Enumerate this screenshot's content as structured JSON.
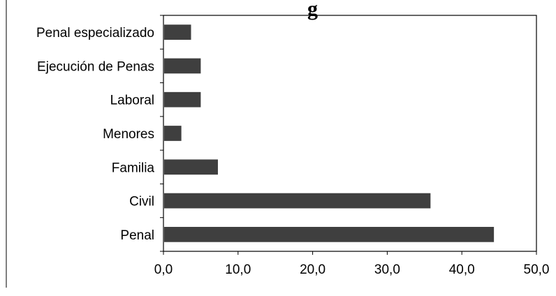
{
  "chart_data": {
    "type": "bar",
    "orientation": "horizontal",
    "title": "",
    "title_fragment_visible": "g",
    "categories": [
      "Penal especializado",
      "Ejecución de Penas",
      "Laboral",
      "Menores",
      "Familia",
      "Civil",
      "Penal"
    ],
    "values": [
      3.7,
      5.0,
      5.0,
      2.4,
      7.3,
      35.8,
      44.3
    ],
    "x_ticks": [
      "0,0",
      "10,0",
      "20,0",
      "30,0",
      "40,0",
      "50,0"
    ],
    "xlim": [
      0,
      50
    ],
    "xlabel": "",
    "ylabel": "",
    "grid": false,
    "legend": "none",
    "bar_color": "#3f3f3f"
  }
}
